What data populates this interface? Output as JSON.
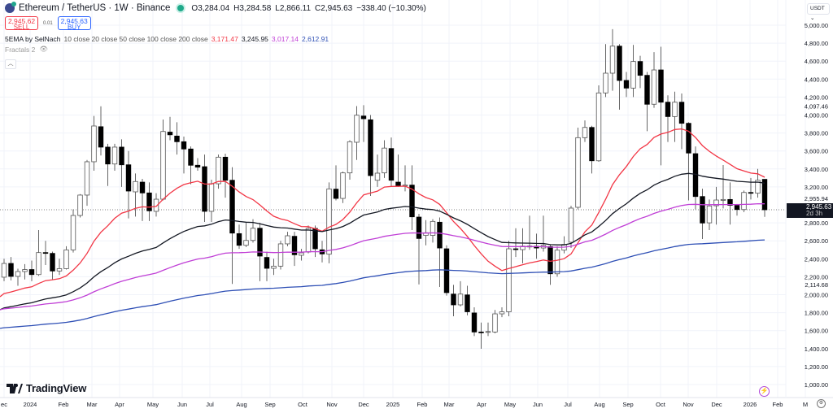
{
  "header": {
    "symbol": "Ethereum / TetherUS · 1W · Binance",
    "open": "O3,284.04",
    "high": "H3,284.58",
    "low": "L2,866.11",
    "close": "C2,945.63",
    "change": "−338.40 (−10.30%)"
  },
  "trade": {
    "sell_price": "2,945.62",
    "sell_label": "SELL",
    "spread": "0.01",
    "buy_price": "2,945.63",
    "buy_label": "BUY"
  },
  "indicators": {
    "ema_name": "5EMA by SelNach",
    "ema_params": "10 close 20 close 50 close 100 close 200 close",
    "values": [
      "3,171.47",
      "3,245.95",
      "3,017.14",
      "2,612.91"
    ],
    "fractals": "Fractals 2"
  },
  "currency": "USDT",
  "logo_text": "TradingView",
  "colors": {
    "ema_red": "#f23645",
    "ema_black": "#131722",
    "ema_magenta": "#c03fd6",
    "ema_blue": "#2e4fb5",
    "up_candle": "#ffffff",
    "down_candle": "#000000"
  },
  "price_tag": {
    "value": "2,945.63",
    "countdown": "2d 3h"
  },
  "chart_data": {
    "type": "candlestick",
    "timeframe": "1W",
    "ylim": [
      1000,
      5000
    ],
    "y_ticks": [
      "5,000.00",
      "4,800.00",
      "4,600.00",
      "4,400.00",
      "4,200.00",
      "4,000.00",
      "3,800.00",
      "3,600.00",
      "3,400.00",
      "3,200.00",
      "2,800.00",
      "2,600.00",
      "2,400.00",
      "2,200.00",
      "2,000.00",
      "1,800.00",
      "1,600.00",
      "1,400.00",
      "1,200.00",
      "1,000.00"
    ],
    "y_tick_values": [
      5000,
      4800,
      4600,
      4400,
      4200,
      4000,
      3800,
      3600,
      3400,
      3200,
      2800,
      2600,
      2400,
      2200,
      2000,
      1800,
      1600,
      1400,
      1200,
      1000
    ],
    "price_labels": [
      {
        "text": "4,097.46",
        "value": 4097.46
      },
      {
        "text": "2,955.94",
        "value": 2955.94
      },
      {
        "text": "2,114.68",
        "value": 2114.68
      }
    ],
    "x_ticks": [
      "ec",
      "2024",
      "Feb",
      "Mar",
      "Apr",
      "May",
      "Jun",
      "Jul",
      "Aug",
      "Sep",
      "Oct",
      "Nov",
      "Dec",
      "2025",
      "Feb",
      "Mar",
      "Apr",
      "May",
      "Jun",
      "Jul",
      "Aug",
      "Sep",
      "Oct",
      "Nov",
      "Dec",
      "2026",
      "Feb",
      "M"
    ],
    "grid": true,
    "current_price": 2945.63,
    "ohlc": [
      [
        2195,
        2400,
        2150,
        2348
      ],
      [
        2348,
        2420,
        2160,
        2204
      ],
      [
        2204,
        2290,
        2100,
        2258
      ],
      [
        2258,
        2340,
        2170,
        2280
      ],
      [
        2280,
        2380,
        2150,
        2224
      ],
      [
        2224,
        2720,
        2210,
        2469
      ],
      [
        2469,
        2600,
        2330,
        2460
      ],
      [
        2460,
        2480,
        2170,
        2264
      ],
      [
        2264,
        2400,
        2220,
        2290
      ],
      [
        2290,
        2540,
        2280,
        2499
      ],
      [
        2499,
        2950,
        2470,
        2882
      ],
      [
        2882,
        3120,
        2860,
        3109
      ],
      [
        3109,
        3500,
        2990,
        3480
      ],
      [
        3480,
        3990,
        3380,
        3878
      ],
      [
        3870,
        4097.46,
        3550,
        3643
      ],
      [
        3643,
        3680,
        3210,
        3455
      ],
      [
        3455,
        3680,
        3380,
        3643
      ],
      [
        3643,
        3730,
        3200,
        3446
      ],
      [
        3446,
        3600,
        2850,
        3154
      ],
      [
        3145,
        3350,
        2870,
        3260
      ],
      [
        3253,
        3290,
        2820,
        3133
      ],
      [
        3133,
        3250,
        2820,
        2934
      ],
      [
        2928,
        3130,
        2870,
        3063
      ],
      [
        3063,
        3950,
        3050,
        3817
      ],
      [
        3810,
        3980,
        3720,
        3780
      ],
      [
        3766,
        3920,
        3560,
        3703
      ],
      [
        3703,
        3760,
        3350,
        3622
      ],
      [
        3622,
        3650,
        3230,
        3441
      ],
      [
        3441,
        3520,
        3380,
        3420
      ],
      [
        3425,
        3560,
        2810,
        2928
      ],
      [
        2928,
        3280,
        2810,
        3235
      ],
      [
        3235,
        3560,
        3180,
        3531
      ],
      [
        3531,
        3570,
        3080,
        3274
      ],
      [
        3274,
        3420,
        2120,
        2686
      ],
      [
        2680,
        2780,
        2510,
        2550
      ],
      [
        2550,
        2800,
        2530,
        2604
      ],
      [
        2604,
        2840,
        2580,
        2740
      ],
      [
        2740,
        2800,
        2150,
        2430
      ],
      [
        2415,
        2480,
        2150,
        2294
      ],
      [
        2294,
        2400,
        2220,
        2318
      ],
      [
        2318,
        2600,
        2280,
        2566
      ],
      [
        2566,
        2700,
        2540,
        2656
      ],
      [
        2650,
        2700,
        2320,
        2445
      ],
      [
        2439,
        2510,
        2380,
        2466
      ],
      [
        2475,
        2770,
        2460,
        2738
      ],
      [
        2738,
        2770,
        2420,
        2511
      ],
      [
        2500,
        2600,
        2360,
        2454
      ],
      [
        2451,
        3250,
        2350,
        3178
      ],
      [
        3175,
        3440,
        3050,
        3072
      ],
      [
        3072,
        3370,
        3020,
        3356
      ],
      [
        3356,
        3720,
        3280,
        3703
      ],
      [
        3697,
        4100,
        3500,
        3998
      ],
      [
        3989,
        4110,
        3700,
        3959
      ],
      [
        3947,
        4000,
        3100,
        3326
      ],
      [
        3274,
        3560,
        3200,
        3353
      ],
      [
        3356,
        3720,
        3300,
        3632
      ],
      [
        3627,
        3750,
        3200,
        3274
      ],
      [
        3253,
        3560,
        3200,
        3214
      ],
      [
        3214,
        3440,
        3150,
        3220
      ],
      [
        3220,
        3440,
        2720,
        2867
      ],
      [
        2864,
        2900,
        2114.68,
        2626
      ],
      [
        2660,
        2830,
        2550,
        2690
      ],
      [
        2660,
        2840,
        2580,
        2816
      ],
      [
        2807,
        2860,
        2086,
        2520
      ],
      [
        2511,
        2550,
        1990,
        2023
      ],
      [
        2007,
        2110,
        1760,
        1887
      ],
      [
        1887,
        2150,
        1870,
        2007
      ],
      [
        1998,
        2100,
        1770,
        1810
      ],
      [
        1797,
        1860,
        1540,
        1585
      ],
      [
        1585,
        1690,
        1398,
        1580
      ],
      [
        1585,
        1690,
        1540,
        1590
      ],
      [
        1585,
        1830,
        1570,
        1787
      ],
      [
        1787,
        1860,
        1750,
        1810
      ],
      [
        1810,
        2600,
        1760,
        2511
      ],
      [
        2511,
        2740,
        2420,
        2502
      ],
      [
        2502,
        2740,
        2350,
        2541
      ],
      [
        2541,
        2880,
        2500,
        2540
      ],
      [
        2540,
        2680,
        2400,
        2520
      ],
      [
        2520,
        2880,
        2480,
        2550
      ],
      [
        2536,
        2560,
        2110,
        2233
      ],
      [
        2233,
        2540,
        2200,
        2496
      ],
      [
        2496,
        2650,
        2460,
        2560
      ],
      [
        2584,
        2990,
        2520,
        2964
      ],
      [
        2973,
        3860,
        2950,
        3748
      ],
      [
        3748,
        3940,
        3700,
        3862
      ],
      [
        3862,
        3880,
        3350,
        3491
      ],
      [
        3491,
        4330,
        3480,
        4246
      ],
      [
        4246,
        4790,
        4200,
        4466
      ],
      [
        4466,
        4956,
        4270,
        4767
      ],
      [
        4767,
        4790,
        4060,
        4385
      ],
      [
        4385,
        4480,
        4200,
        4300
      ],
      [
        4300,
        4780,
        4200,
        4596
      ],
      [
        4596,
        4660,
        4300,
        4442
      ],
      [
        4442,
        4480,
        3820,
        4120
      ],
      [
        4120,
        4700,
        4080,
        4502
      ],
      [
        4502,
        4760,
        3440,
        4143
      ],
      [
        4143,
        4220,
        3700,
        3983
      ],
      [
        3983,
        4260,
        3700,
        4143
      ],
      [
        4143,
        4240,
        3620,
        3908
      ],
      [
        3908,
        3920,
        3050,
        3577
      ],
      [
        3570,
        3650,
        2950,
        3093
      ],
      [
        3093,
        3180,
        2620,
        2798
      ],
      [
        2800,
        3060,
        2720,
        2988
      ],
      [
        2990,
        3200,
        2780,
        3054
      ],
      [
        3050,
        3444,
        2960,
        3060
      ],
      [
        3060,
        3250,
        2780,
        2995
      ],
      [
        2995,
        3010,
        2880,
        2948
      ],
      [
        2948,
        3160,
        2920,
        3138
      ],
      [
        3138,
        3300,
        3060,
        3130
      ],
      [
        3130,
        3400,
        3080,
        3274
      ],
      [
        3284.04,
        3284.58,
        2866.11,
        2945.63
      ]
    ],
    "ema_lengths": [
      20,
      50,
      100,
      200
    ],
    "ema_last_values": [
      3171.47,
      3245.95,
      3017.14,
      2612.91
    ]
  }
}
